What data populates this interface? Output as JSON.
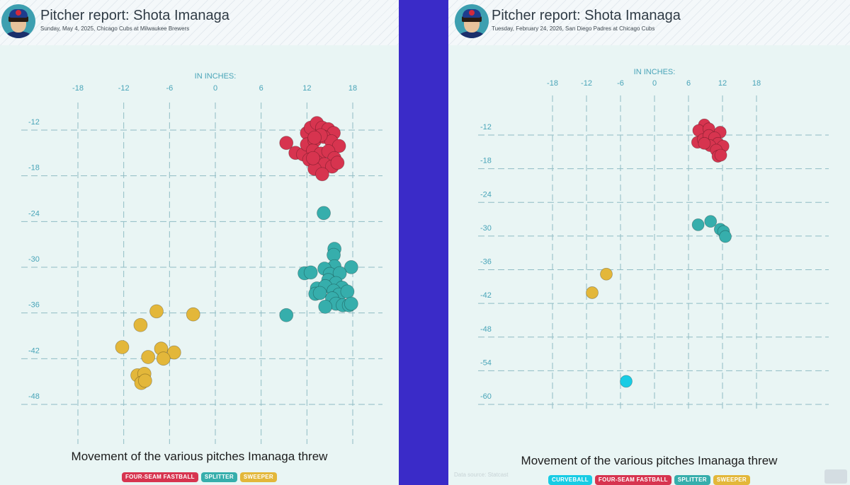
{
  "colors": {
    "four_seam_fastball": "#d7344f",
    "splitter": "#36aeac",
    "sweeper": "#e3b73a",
    "curveball": "#18cce4",
    "grid": "#8fbcc4",
    "axis_text": "#48a4b8"
  },
  "panels": [
    {
      "title": "Pitcher report: Shota Imanaga",
      "subtitle": "Sunday, May 4, 2025, Chicago Cubs at Milwaukee Brewers",
      "caption": "Movement of the various pitches Imanaga threw",
      "legend": [
        {
          "label": "FOUR-SEAM FASTBALL",
          "color": "#d7344f"
        },
        {
          "label": "SPLITTER",
          "color": "#36aeac"
        },
        {
          "label": "SWEEPER",
          "color": "#e3b73a"
        }
      ]
    },
    {
      "title": "Pitcher report: Shota Imanaga",
      "subtitle": "Tuesday, February 24, 2026, San Diego Padres at Chicago Cubs",
      "caption": "Movement of the various pitches Imanaga threw",
      "source": "Data source: Statcast",
      "legend": [
        {
          "label": "CURVEBALL",
          "color": "#18cce4"
        },
        {
          "label": "FOUR-SEAM FASTBALL",
          "color": "#d7344f"
        },
        {
          "label": "SPLITTER",
          "color": "#36aeac"
        },
        {
          "label": "SWEEPER",
          "color": "#e3b73a"
        }
      ]
    }
  ],
  "chart_data": [
    {
      "type": "scatter",
      "title": "Pitcher report: Shota Imanaga",
      "subtitle": "Sunday, May 4, 2025, Chicago Cubs at Milwaukee Brewers",
      "xlabel": "IN INCHES:",
      "ylabel": "",
      "xlim": [
        -18,
        18
      ],
      "ylim": [
        -48,
        -12
      ],
      "xticks": [
        -18,
        -12,
        -6,
        0,
        6,
        12,
        18
      ],
      "yticks": [
        -12,
        -18,
        -24,
        -30,
        -36,
        -42,
        -48
      ],
      "grid": true,
      "legend_position": "bottom",
      "series": [
        {
          "name": "FOUR-SEAM FASTBALL",
          "color": "#d7344f",
          "points": [
            [
              9.3,
              -14.8
            ],
            [
              10.5,
              -16.1
            ],
            [
              11.5,
              -16.3
            ],
            [
              12.0,
              -13.5
            ],
            [
              12.5,
              -12.8
            ],
            [
              13.3,
              -12.2
            ],
            [
              14.0,
              -12.8
            ],
            [
              14.8,
              -13.0
            ],
            [
              15.5,
              -13.5
            ],
            [
              12.0,
              -15.0
            ],
            [
              13.0,
              -14.5
            ],
            [
              14.2,
              -14.0
            ],
            [
              15.2,
              -14.6
            ],
            [
              16.2,
              -15.2
            ],
            [
              12.8,
              -15.8
            ],
            [
              13.8,
              -16.2
            ],
            [
              14.8,
              -15.9
            ],
            [
              15.6,
              -16.8
            ],
            [
              12.3,
              -17.0
            ],
            [
              13.3,
              -17.3
            ],
            [
              14.3,
              -17.6
            ],
            [
              15.3,
              -17.9
            ],
            [
              16.0,
              -17.4
            ],
            [
              13.0,
              -18.2
            ],
            [
              14.0,
              -18.9
            ],
            [
              13.8,
              -13.8
            ],
            [
              13.0,
              -14.1
            ],
            [
              12.8,
              -16.8
            ]
          ]
        },
        {
          "name": "SPLITTER",
          "color": "#36aeac",
          "points": [
            [
              14.2,
              -24.0
            ],
            [
              15.6,
              -28.7
            ],
            [
              15.5,
              -29.5
            ],
            [
              15.6,
              -31.0
            ],
            [
              17.8,
              -31.1
            ],
            [
              14.3,
              -31.3
            ],
            [
              11.7,
              -31.9
            ],
            [
              12.5,
              -31.8
            ],
            [
              15.0,
              -32.0
            ],
            [
              16.3,
              -31.9
            ],
            [
              14.8,
              -32.8
            ],
            [
              15.8,
              -33.2
            ],
            [
              16.6,
              -33.8
            ],
            [
              13.3,
              -33.9
            ],
            [
              14.4,
              -33.6
            ],
            [
              15.5,
              -34.2
            ],
            [
              16.2,
              -34.7
            ],
            [
              17.3,
              -34.3
            ],
            [
              13.1,
              -34.6
            ],
            [
              13.7,
              -34.5
            ],
            [
              15.3,
              -35.2
            ],
            [
              15.8,
              -35.9
            ],
            [
              16.7,
              -36.1
            ],
            [
              17.5,
              -36.1
            ],
            [
              17.8,
              -35.9
            ],
            [
              14.4,
              -36.3
            ],
            [
              9.3,
              -37.4
            ]
          ]
        },
        {
          "name": "SWEEPER",
          "color": "#e3b73a",
          "points": [
            [
              -7.7,
              -36.9
            ],
            [
              -2.9,
              -37.3
            ],
            [
              -9.8,
              -38.7
            ],
            [
              -12.2,
              -41.6
            ],
            [
              -7.1,
              -41.8
            ],
            [
              -5.4,
              -42.3
            ],
            [
              -8.8,
              -42.9
            ],
            [
              -6.8,
              -43.1
            ],
            [
              -10.2,
              -45.3
            ],
            [
              -9.3,
              -45.1
            ],
            [
              -9.7,
              -46.3
            ],
            [
              -9.2,
              -46.0
            ]
          ]
        }
      ]
    },
    {
      "type": "scatter",
      "title": "Pitcher report: Shota Imanaga",
      "subtitle": "Tuesday, February 24, 2026, San Diego Padres at Chicago Cubs",
      "xlabel": "IN INCHES:",
      "ylabel": "",
      "xlim": [
        -18,
        18
      ],
      "ylim": [
        -60,
        -12
      ],
      "xticks": [
        -18,
        -12,
        -6,
        0,
        6,
        12,
        18
      ],
      "yticks": [
        -12,
        -18,
        -24,
        -30,
        -36,
        -42,
        -48,
        -54,
        -60
      ],
      "grid": true,
      "legend_position": "bottom",
      "series": [
        {
          "name": "CURVEBALL",
          "color": "#18cce4",
          "points": [
            [
              -5.0,
              -57.4
            ]
          ]
        },
        {
          "name": "FOUR-SEAM FASTBALL",
          "color": "#d7344f",
          "points": [
            [
              8.8,
              -11.7
            ],
            [
              7.8,
              -12.7
            ],
            [
              9.6,
              -12.4
            ],
            [
              11.6,
              -13.0
            ],
            [
              7.6,
              -14.8
            ],
            [
              8.6,
              -14.3
            ],
            [
              9.6,
              -13.6
            ],
            [
              10.6,
              -14.0
            ],
            [
              11.2,
              -15.0
            ],
            [
              12.1,
              -15.5
            ],
            [
              9.8,
              -15.4
            ],
            [
              10.9,
              -16.2
            ],
            [
              11.2,
              -17.3
            ],
            [
              11.7,
              -17.1
            ],
            [
              8.8,
              -15.0
            ]
          ]
        },
        {
          "name": "SPLITTER",
          "color": "#36aeac",
          "points": [
            [
              7.7,
              -29.5
            ],
            [
              9.9,
              -28.9
            ],
            [
              11.6,
              -30.3
            ],
            [
              12.2,
              -30.7
            ],
            [
              12.5,
              -31.6
            ]
          ]
        },
        {
          "name": "SWEEPER",
          "color": "#e3b73a",
          "points": [
            [
              -8.5,
              -38.3
            ],
            [
              -11.0,
              -41.6
            ]
          ]
        }
      ]
    }
  ]
}
